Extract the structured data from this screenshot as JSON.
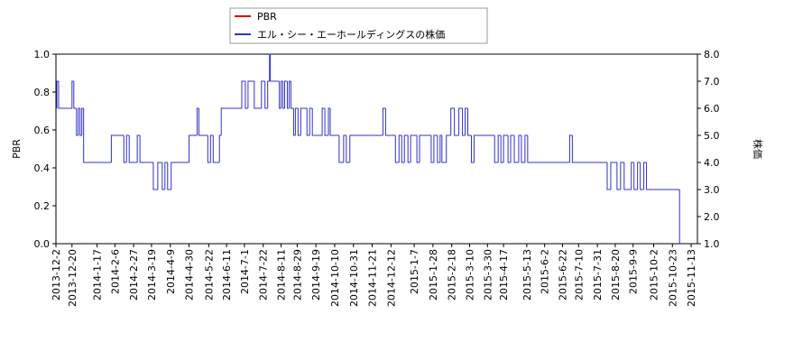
{
  "chart_data": {
    "type": "step",
    "ylabel": "PBR",
    "y2label": "株価",
    "xlim": [
      "2013-12-2",
      "2015-11-20"
    ],
    "xticks": [
      "2013-12-2",
      "2013-12-20",
      "2014-1-17",
      "2014-2-6",
      "2014-2-27",
      "2014-3-19",
      "2014-4-9",
      "2014-4-30",
      "2014-5-22",
      "2014-6-11",
      "2014-7-1",
      "2014-7-22",
      "2014-8-11",
      "2014-8-29",
      "2014-9-19",
      "2014-10-10",
      "2014-10-31",
      "2014-11-21",
      "2014-12-12",
      "2015-1-7",
      "2015-1-28",
      "2015-2-18",
      "2015-3-10",
      "2015-3-30",
      "2015-4-17",
      "2015-5-13",
      "2015-6-2",
      "2015-6-22",
      "2015-7-10",
      "2015-7-31",
      "2015-8-20",
      "2015-9-9",
      "2015-10-2",
      "2015-10-23",
      "2015-11-13"
    ],
    "ylim": [
      0,
      1
    ],
    "yticks": [
      {
        "value": 0,
        "label": "0.0"
      },
      0.2,
      0.4,
      0.6,
      0.8,
      {
        "value": 1,
        "label": "1.0"
      }
    ],
    "y2lim": [
      1,
      8
    ],
    "y2ticks": [
      {
        "value": 1,
        "label": "1.0"
      },
      {
        "value": 2,
        "label": "2.0"
      },
      {
        "value": 3,
        "label": "3.0"
      },
      {
        "value": 4,
        "label": "4.0"
      },
      {
        "value": 5,
        "label": "5.0"
      },
      {
        "value": 6,
        "label": "6.0"
      },
      {
        "value": 7,
        "label": "7.0"
      },
      {
        "value": 8,
        "label": "8.0"
      }
    ],
    "series": [
      {
        "name": "PBR",
        "color": "#e00000",
        "x": [],
        "values": []
      },
      {
        "name": "エル・シー・エーホールディングスの株価",
        "color": "#3030d0",
        "axis": "y2",
        "x": [
          "2013-12-2",
          "2013-12-3",
          "2013-12-5",
          "2013-12-20",
          "2013-12-22",
          "2013-12-25",
          "2013-12-27",
          "2013-12-29",
          "2013-12-31",
          "2014-1-2",
          "2014-2-2",
          "2014-2-16",
          "2014-2-19",
          "2014-2-22",
          "2014-3-3",
          "2014-3-6",
          "2014-3-21",
          "2014-3-26",
          "2014-3-31",
          "2014-4-3",
          "2014-4-6",
          "2014-4-10",
          "2014-4-30",
          "2014-5-9",
          "2014-5-11",
          "2014-5-21",
          "2014-5-24",
          "2014-5-27",
          "2014-6-3",
          "2014-6-5",
          "2014-6-28",
          "2014-7-2",
          "2014-7-5",
          "2014-7-12",
          "2014-7-20",
          "2014-7-24",
          "2014-7-27",
          "2014-7-29",
          "2014-7-30",
          "2014-8-9",
          "2014-8-11",
          "2014-8-13",
          "2014-8-15",
          "2014-8-18",
          "2014-8-20",
          "2014-8-22",
          "2014-8-25",
          "2014-8-27",
          "2014-8-30",
          "2014-9-2",
          "2014-9-9",
          "2014-9-12",
          "2014-9-15",
          "2014-9-26",
          "2014-9-29",
          "2014-10-3",
          "2014-10-5",
          "2014-10-15",
          "2014-10-20",
          "2014-10-23",
          "2014-10-27",
          "2014-12-3",
          "2014-12-6",
          "2014-12-17",
          "2014-12-21",
          "2014-12-24",
          "2014-12-27",
          "2014-12-31",
          "2015-1-3",
          "2015-1-10",
          "2015-1-13",
          "2015-1-26",
          "2015-1-29",
          "2015-2-2",
          "2015-2-5",
          "2015-2-7",
          "2015-2-12",
          "2015-2-17",
          "2015-2-21",
          "2015-2-26",
          "2015-3-2",
          "2015-3-5",
          "2015-3-8",
          "2015-3-12",
          "2015-3-15",
          "2015-4-7",
          "2015-4-11",
          "2015-4-14",
          "2015-4-17",
          "2015-4-22",
          "2015-4-25",
          "2015-4-29",
          "2015-5-4",
          "2015-5-7",
          "2015-5-11",
          "2015-5-14",
          "2015-6-30",
          "2015-7-3",
          "2015-8-11",
          "2015-8-15",
          "2015-8-22",
          "2015-8-26",
          "2015-8-30",
          "2015-9-7",
          "2015-9-10",
          "2015-9-14",
          "2015-9-17",
          "2015-9-21",
          "2015-9-24",
          "2015-10-31"
        ],
        "values": [
          6,
          7,
          6,
          7,
          6,
          5,
          6,
          5,
          6,
          4,
          5,
          4,
          5,
          4,
          5,
          4,
          3,
          4,
          3,
          4,
          3,
          4,
          5,
          6,
          5,
          4,
          5,
          4,
          5,
          6,
          7,
          6,
          7,
          6,
          7,
          6,
          7,
          8,
          7,
          6,
          7,
          6,
          7,
          6,
          7,
          6,
          5,
          6,
          5,
          6,
          5,
          6,
          5,
          6,
          5,
          6,
          5,
          4,
          5,
          4,
          5,
          6,
          5,
          4,
          5,
          4,
          5,
          4,
          5,
          4,
          5,
          4,
          5,
          4,
          5,
          4,
          5,
          6,
          5,
          6,
          5,
          6,
          5,
          4,
          5,
          4,
          5,
          4,
          5,
          4,
          5,
          4,
          5,
          4,
          5,
          4,
          5,
          4,
          3,
          4,
          3,
          4,
          3,
          4,
          3,
          4,
          3,
          4,
          3,
          1
        ]
      }
    ]
  }
}
